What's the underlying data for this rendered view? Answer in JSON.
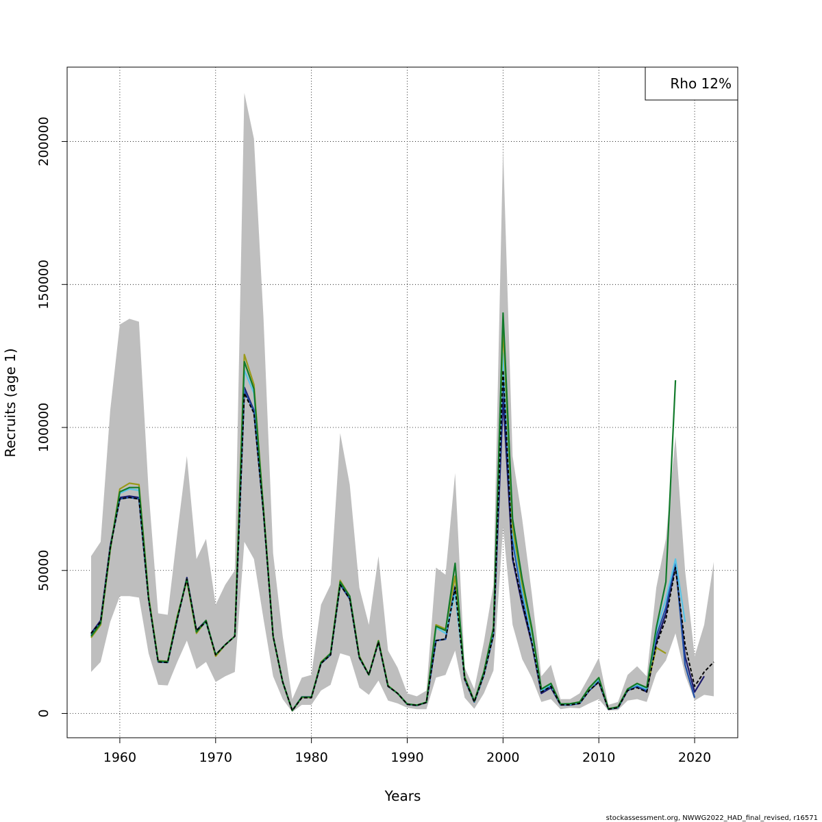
{
  "chart_data": {
    "type": "line",
    "title": "",
    "xlabel": "Years",
    "ylabel": "Recruits (age 1)",
    "xlim": [
      1954.5,
      2024.5
    ],
    "ylim": [
      -8500,
      226000
    ],
    "xticks": [
      1960,
      1970,
      1980,
      1990,
      2000,
      2010,
      2020
    ],
    "xtick_labels": [
      "1960",
      "1970",
      "1980",
      "1990",
      "2000",
      "2010",
      "2020"
    ],
    "yticks": [
      0,
      50000,
      100000,
      150000,
      200000
    ],
    "ytick_labels": [
      "0",
      "50000",
      "100000",
      "150000",
      "200000"
    ],
    "grid": true,
    "legend_position": "top-right",
    "legend_text": "Rho 12%",
    "footer": "stockassessment.org, NWWG2022_HAD_final_revised, r16571",
    "colors": {
      "band": "#bebebe",
      "terminal_line": "#000000",
      "peel_navy": "#1d1b6e",
      "peel_blue": "#1f4fa8",
      "peel_cyan": "#58c4e6",
      "peel_olive": "#9a9a1a",
      "peel_green": "#117a2a"
    },
    "confidence_band": {
      "x": [
        1957,
        1958,
        1959,
        1960,
        1961,
        1962,
        1963,
        1964,
        1965,
        1966,
        1967,
        1968,
        1969,
        1970,
        1971,
        1972,
        1973,
        1974,
        1975,
        1976,
        1977,
        1978,
        1979,
        1980,
        1981,
        1982,
        1983,
        1984,
        1985,
        1986,
        1987,
        1988,
        1989,
        1990,
        1991,
        1992,
        1993,
        1994,
        1995,
        1996,
        1997,
        1998,
        1999,
        2000,
        2001,
        2002,
        2003,
        2004,
        2005,
        2006,
        2007,
        2008,
        2009,
        2010,
        2011,
        2012,
        2013,
        2014,
        2015,
        2016,
        2017,
        2018,
        2019,
        2020,
        2021,
        2022
      ],
      "lower": [
        14500,
        18000,
        32000,
        41000,
        41000,
        40500,
        21000,
        10000,
        9800,
        18000,
        25500,
        15500,
        18000,
        11000,
        13000,
        14500,
        60000,
        54000,
        33000,
        13000,
        5000,
        500,
        3000,
        3000,
        8000,
        10000,
        21000,
        20000,
        9000,
        6500,
        11500,
        4500,
        3500,
        2000,
        1500,
        1500,
        12500,
        13500,
        22000,
        5500,
        1600,
        7000,
        15000,
        65000,
        31000,
        19000,
        12500,
        4000,
        5000,
        1500,
        2000,
        1800,
        3500,
        5000,
        1000,
        1200,
        4500,
        5000,
        4000,
        14000,
        18500,
        28000,
        13500,
        4500,
        6500,
        6000
      ],
      "upper": [
        55000,
        60000,
        106000,
        136000,
        138000,
        137000,
        78000,
        35000,
        34500,
        63000,
        90000,
        54000,
        61000,
        38000,
        45000,
        50000,
        217000,
        201000,
        138000,
        56000,
        27000,
        5000,
        12500,
        13500,
        38000,
        45000,
        98000,
        80000,
        44000,
        31000,
        55000,
        22000,
        16000,
        7000,
        6000,
        8000,
        51000,
        48500,
        84000,
        16000,
        8500,
        25000,
        45000,
        198000,
        90000,
        68000,
        42000,
        13000,
        17000,
        5000,
        5000,
        7000,
        13000,
        19500,
        3000,
        4000,
        13500,
        16500,
        13000,
        44000,
        61000,
        97000,
        50000,
        20000,
        31000,
        53000
      ]
    },
    "series": [
      {
        "color": "#000000",
        "dashed": true,
        "x": [
          1957,
          1958,
          1959,
          1960,
          1961,
          1962,
          1963,
          1964,
          1965,
          1966,
          1967,
          1968,
          1969,
          1970,
          1971,
          1972,
          1973,
          1974,
          1975,
          1976,
          1977,
          1978,
          1979,
          1980,
          1981,
          1982,
          1983,
          1984,
          1985,
          1986,
          1987,
          1988,
          1989,
          1990,
          1991,
          1992,
          1993,
          1994,
          1995,
          1996,
          1997,
          1998,
          1999,
          2000,
          2001,
          2002,
          2003,
          2004,
          2005,
          2006,
          2007,
          2008,
          2009,
          2010,
          2011,
          2012,
          2013,
          2014,
          2015,
          2016,
          2017,
          2018,
          2019,
          2020,
          2021,
          2022
        ],
        "values": [
          28000,
          32000,
          58000,
          75000,
          75500,
          75000,
          40000,
          18000,
          17800,
          33000,
          47000,
          29000,
          32000,
          20500,
          24000,
          27000,
          112000,
          105000,
          70000,
          27000,
          11000,
          1000,
          5500,
          5500,
          17500,
          20500,
          45000,
          40000,
          19500,
          13500,
          25000,
          9500,
          7000,
          3200,
          2800,
          3800,
          25500,
          26000,
          44000,
          12000,
          4000,
          13500,
          27500,
          120000,
          55000,
          39000,
          25000,
          7500,
          9500,
          3000,
          3000,
          3500,
          8000,
          11000,
          1500,
          2000,
          8000,
          9000,
          7500,
          24000,
          33000,
          51000,
          24000,
          9500,
          14500,
          18000
        ]
      },
      {
        "color": "#1d1b6e",
        "dashed": false,
        "x": [
          1957,
          1958,
          1959,
          1960,
          1961,
          1962,
          1963,
          1964,
          1965,
          1966,
          1967,
          1968,
          1969,
          1970,
          1971,
          1972,
          1973,
          1974,
          1975,
          1976,
          1977,
          1978,
          1979,
          1980,
          1981,
          1982,
          1983,
          1984,
          1985,
          1986,
          1987,
          1988,
          1989,
          1990,
          1991,
          1992,
          1993,
          1994,
          1995,
          1996,
          1997,
          1998,
          1999,
          2000,
          2001,
          2002,
          2003,
          2004,
          2005,
          2006,
          2007,
          2008,
          2009,
          2010,
          2011,
          2012,
          2013,
          2014,
          2015,
          2016,
          2017,
          2018,
          2019,
          2020,
          2021
        ],
        "values": [
          28000,
          32500,
          58500,
          75500,
          76000,
          75500,
          40500,
          18200,
          18000,
          33000,
          47500,
          29000,
          32500,
          20500,
          24000,
          27000,
          114000,
          106000,
          70500,
          27000,
          11000,
          1000,
          5800,
          5800,
          17500,
          20500,
          45500,
          40500,
          19500,
          13500,
          25000,
          9500,
          7000,
          3200,
          2800,
          3800,
          25500,
          26000,
          44000,
          12000,
          4000,
          13500,
          27500,
          110000,
          54000,
          38000,
          24500,
          7000,
          9000,
          3000,
          3000,
          3500,
          8000,
          11000,
          1500,
          2000,
          8000,
          9500,
          7500,
          25000,
          35000,
          52000,
          20000,
          7500,
          13000
        ]
      },
      {
        "color": "#1f4fa8",
        "dashed": false,
        "x": [
          1957,
          1958,
          1959,
          1960,
          1961,
          1962,
          1963,
          1964,
          1965,
          1966,
          1967,
          1968,
          1969,
          1970,
          1971,
          1972,
          1973,
          1974,
          1975,
          1976,
          1977,
          1978,
          1979,
          1980,
          1981,
          1982,
          1983,
          1984,
          1985,
          1986,
          1987,
          1988,
          1989,
          1990,
          1991,
          1992,
          1993,
          1994,
          1995,
          1996,
          1997,
          1998,
          1999,
          2000,
          2001,
          2002,
          2003,
          2004,
          2005,
          2006,
          2007,
          2008,
          2009,
          2010,
          2011,
          2012,
          2013,
          2014,
          2015,
          2016,
          2017,
          2018,
          2019,
          2020
        ],
        "values": [
          27500,
          32000,
          58000,
          75000,
          75500,
          75000,
          40000,
          18000,
          17800,
          33000,
          47000,
          28500,
          32000,
          20500,
          24000,
          27000,
          113000,
          105500,
          70000,
          27000,
          11000,
          1000,
          5600,
          5600,
          17500,
          20500,
          45000,
          40000,
          19500,
          13500,
          25000,
          9500,
          7000,
          3200,
          2800,
          3800,
          25500,
          26000,
          44500,
          12000,
          4000,
          13500,
          27500,
          118000,
          60000,
          41000,
          26000,
          7500,
          9500,
          3000,
          3000,
          3500,
          8000,
          11500,
          1500,
          2000,
          8000,
          9500,
          8000,
          27000,
          37000,
          53000,
          17000,
          5500
        ]
      },
      {
        "color": "#58c4e6",
        "dashed": false,
        "x": [
          1957,
          1958,
          1959,
          1960,
          1961,
          1962,
          1963,
          1964,
          1965,
          1966,
          1967,
          1968,
          1969,
          1970,
          1971,
          1972,
          1973,
          1974,
          1975,
          1976,
          1977,
          1978,
          1979,
          1980,
          1981,
          1982,
          1983,
          1984,
          1985,
          1986,
          1987,
          1988,
          1989,
          1990,
          1991,
          1992,
          1993,
          1994,
          1995,
          1996,
          1997,
          1998,
          1999,
          2000,
          2001,
          2002,
          2003,
          2004,
          2005,
          2006,
          2007,
          2008,
          2009,
          2010,
          2011,
          2012,
          2013,
          2014,
          2015,
          2016,
          2017,
          2018,
          2019
        ],
        "values": [
          27000,
          31500,
          57500,
          77000,
          78500,
          78000,
          40500,
          18300,
          18100,
          33500,
          47000,
          28500,
          32000,
          20500,
          24000,
          27000,
          120000,
          112000,
          71000,
          27000,
          11000,
          1000,
          5700,
          5700,
          17800,
          21000,
          46000,
          41000,
          19800,
          13500,
          25300,
          9600,
          7000,
          3300,
          2900,
          3900,
          30000,
          28000,
          42000,
          12500,
          4200,
          14000,
          29000,
          126000,
          63000,
          43000,
          27000,
          8000,
          10000,
          3200,
          3200,
          3800,
          8500,
          12000,
          1600,
          2200,
          8500,
          10000,
          8500,
          29000,
          40000,
          54000,
          32000
        ]
      },
      {
        "color": "#9a9a1a",
        "dashed": false,
        "x": [
          1957,
          1958,
          1959,
          1960,
          1961,
          1962,
          1963,
          1964,
          1965,
          1966,
          1967,
          1968,
          1969,
          1970,
          1971,
          1972,
          1973,
          1974,
          1975,
          1976,
          1977,
          1978,
          1979,
          1980,
          1981,
          1982,
          1983,
          1984,
          1985,
          1986,
          1987,
          1988,
          1989,
          1990,
          1991,
          1992,
          1993,
          1994,
          1995,
          1996,
          1997,
          1998,
          1999,
          2000,
          2001,
          2002,
          2003,
          2004,
          2005,
          2006,
          2007,
          2008,
          2009,
          2010,
          2011,
          2012,
          2013,
          2014,
          2015,
          2016,
          2017
        ],
        "values": [
          26500,
          31000,
          57000,
          78500,
          80500,
          80000,
          41000,
          18500,
          18200,
          34000,
          46500,
          28000,
          32500,
          20000,
          24000,
          27000,
          125500,
          115000,
          71500,
          27000,
          11000,
          1000,
          5600,
          5600,
          18000,
          21000,
          46500,
          41000,
          20000,
          13500,
          25500,
          9700,
          7000,
          3300,
          2900,
          3900,
          31000,
          29500,
          48000,
          12800,
          4300,
          14500,
          30000,
          135000,
          65000,
          45000,
          29000,
          8500,
          10500,
          3300,
          3400,
          4000,
          8800,
          12500,
          1600,
          2300,
          8500,
          10500,
          9000,
          23000,
          21000
        ]
      },
      {
        "color": "#117a2a",
        "dashed": false,
        "x": [
          1957,
          1958,
          1959,
          1960,
          1961,
          1962,
          1963,
          1964,
          1965,
          1966,
          1967,
          1968,
          1969,
          1970,
          1971,
          1972,
          1973,
          1974,
          1975,
          1976,
          1977,
          1978,
          1979,
          1980,
          1981,
          1982,
          1983,
          1984,
          1985,
          1986,
          1987,
          1988,
          1989,
          1990,
          1991,
          1992,
          1993,
          1994,
          1995,
          1996,
          1997,
          1998,
          1999,
          2000,
          2001,
          2002,
          2003,
          2004,
          2005,
          2006,
          2007,
          2008,
          2009,
          2010,
          2011,
          2012,
          2013,
          2014,
          2015,
          2016,
          2017,
          2018
        ],
        "values": [
          27000,
          31500,
          57500,
          77500,
          79000,
          79000,
          40500,
          18300,
          18100,
          33500,
          47000,
          28500,
          32500,
          20500,
          24000,
          27000,
          123000,
          113500,
          71000,
          27000,
          11000,
          1000,
          5700,
          5700,
          17800,
          21000,
          46000,
          41000,
          19800,
          13500,
          25300,
          9600,
          7000,
          3300,
          2900,
          3900,
          30500,
          29000,
          52500,
          12600,
          4300,
          14500,
          30000,
          140000,
          68000,
          47000,
          30000,
          8500,
          10500,
          3300,
          3400,
          4000,
          9000,
          12500,
          1600,
          2300,
          8500,
          10500,
          9000,
          30000,
          46000,
          116500
        ]
      }
    ]
  }
}
